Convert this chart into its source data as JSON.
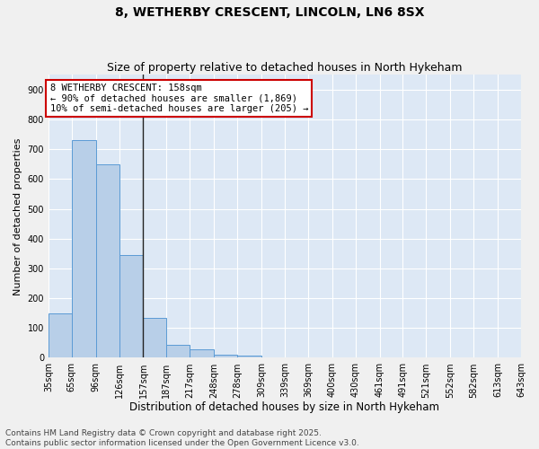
{
  "title1": "8, WETHERBY CRESCENT, LINCOLN, LN6 8SX",
  "title2": "Size of property relative to detached houses in North Hykeham",
  "xlabel": "Distribution of detached houses by size in North Hykeham",
  "ylabel": "Number of detached properties",
  "bar_left_edges": [
    35,
    65,
    96,
    126,
    157,
    187,
    217,
    248,
    278,
    309,
    339,
    369,
    400,
    430,
    461,
    491,
    521,
    552,
    582,
    613
  ],
  "bar_heights": [
    150,
    730,
    650,
    345,
    135,
    45,
    30,
    10,
    7,
    0,
    0,
    0,
    0,
    0,
    0,
    0,
    0,
    0,
    0,
    0
  ],
  "bar_widths": [
    30,
    31,
    30,
    31,
    30,
    30,
    31,
    30,
    31,
    30,
    30,
    31,
    30,
    31,
    30,
    30,
    31,
    30,
    31,
    30
  ],
  "bar_color": "#b8cfe8",
  "bar_edge_color": "#5b9bd5",
  "vline_x": 157,
  "vline_color": "#222222",
  "annotation_text_lines": [
    "8 WETHERBY CRESCENT: 158sqm",
    "← 90% of detached houses are smaller (1,869)",
    "10% of semi-detached houses are larger (205) →"
  ],
  "annotation_box_color": "#ffffff",
  "annotation_border_color": "#cc0000",
  "ylim": [
    0,
    950
  ],
  "yticks": [
    0,
    100,
    200,
    300,
    400,
    500,
    600,
    700,
    800,
    900
  ],
  "tick_labels": [
    "35sqm",
    "65sqm",
    "96sqm",
    "126sqm",
    "157sqm",
    "187sqm",
    "217sqm",
    "248sqm",
    "278sqm",
    "309sqm",
    "339sqm",
    "369sqm",
    "400sqm",
    "430sqm",
    "461sqm",
    "491sqm",
    "521sqm",
    "552sqm",
    "582sqm",
    "613sqm",
    "643sqm"
  ],
  "bg_color": "#dde8f5",
  "grid_color": "#ffffff",
  "fig_bg_color": "#f0f0f0",
  "footer_text": "Contains HM Land Registry data © Crown copyright and database right 2025.\nContains public sector information licensed under the Open Government Licence v3.0.",
  "title1_fontsize": 10,
  "title2_fontsize": 9,
  "xlabel_fontsize": 8.5,
  "ylabel_fontsize": 8,
  "tick_fontsize": 7,
  "ann_fontsize": 7.5,
  "footer_fontsize": 6.5
}
